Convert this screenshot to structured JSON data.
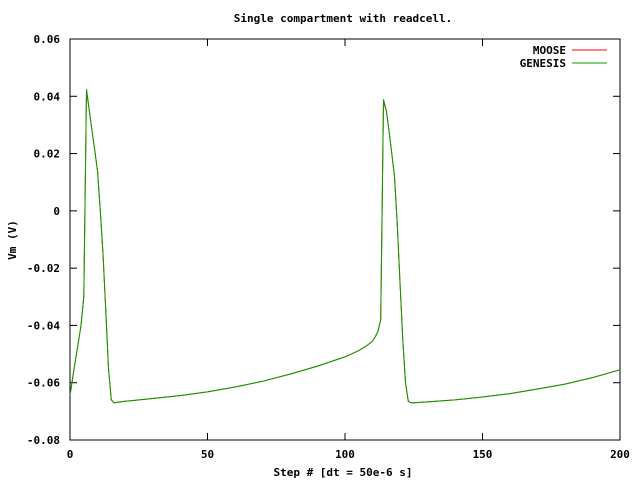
{
  "chart_data": {
    "type": "line",
    "title": "Single compartment with readcell.",
    "xlabel": "Step # [dt = 50e-6 s]",
    "ylabel": "Vm (V)",
    "xlim": [
      0,
      200
    ],
    "ylim": [
      -0.08,
      0.06
    ],
    "x_ticks": [
      0,
      50,
      100,
      150,
      200
    ],
    "x_tick_labels": [
      "0",
      "50",
      "100",
      "150",
      "200"
    ],
    "y_ticks": [
      -0.08,
      -0.06,
      -0.04,
      -0.02,
      0,
      0.02,
      0.04,
      0.06
    ],
    "y_tick_labels": [
      "-0.08",
      "-0.06",
      "-0.04",
      "-0.02",
      "0",
      "0.02",
      "0.04",
      "0.06"
    ],
    "legend_position": "top-right",
    "grid": false,
    "series": [
      {
        "name": "MOOSE",
        "color": "#ff0000",
        "x": [
          0,
          1,
          2,
          3,
          4,
          5,
          6,
          7,
          8,
          9,
          10,
          11,
          12,
          13,
          14,
          15,
          16,
          20,
          30,
          40,
          50,
          60,
          70,
          80,
          90,
          100,
          105,
          108,
          110,
          111,
          112,
          113,
          114,
          115,
          116,
          117,
          118,
          119,
          120,
          121,
          122,
          123,
          124,
          125,
          130,
          140,
          150,
          160,
          170,
          180,
          190,
          200
        ],
        "y": [
          -0.0645,
          -0.058,
          -0.052,
          -0.046,
          -0.04,
          -0.03,
          0.042,
          0.035,
          0.028,
          0.021,
          0.014,
          0.0,
          -0.015,
          -0.035,
          -0.055,
          -0.066,
          -0.067,
          -0.0665,
          -0.0655,
          -0.0645,
          -0.0632,
          -0.0615,
          -0.0595,
          -0.057,
          -0.0542,
          -0.051,
          -0.0488,
          -0.047,
          -0.0455,
          -0.044,
          -0.042,
          -0.038,
          0.038,
          0.035,
          0.028,
          0.02,
          0.012,
          -0.005,
          -0.025,
          -0.045,
          -0.06,
          -0.0665,
          -0.067,
          -0.067,
          -0.0667,
          -0.066,
          -0.065,
          -0.0638,
          -0.0622,
          -0.0605,
          -0.0582,
          -0.0555
        ]
      },
      {
        "name": "GENESIS",
        "color": "#00a000",
        "x": [
          0,
          1,
          2,
          3,
          4,
          5,
          6,
          7,
          8,
          9,
          10,
          11,
          12,
          13,
          14,
          15,
          16,
          20,
          30,
          40,
          50,
          60,
          70,
          80,
          90,
          100,
          105,
          108,
          110,
          111,
          112,
          113,
          114,
          115,
          116,
          117,
          118,
          119,
          120,
          121,
          122,
          123,
          124,
          125,
          130,
          140,
          150,
          160,
          170,
          180,
          190,
          200
        ],
        "y": [
          -0.0645,
          -0.058,
          -0.052,
          -0.046,
          -0.04,
          -0.03,
          0.0425,
          0.035,
          0.028,
          0.021,
          0.014,
          0.0,
          -0.015,
          -0.035,
          -0.055,
          -0.066,
          -0.067,
          -0.0665,
          -0.0655,
          -0.0645,
          -0.0632,
          -0.0615,
          -0.0595,
          -0.057,
          -0.0542,
          -0.051,
          -0.0488,
          -0.047,
          -0.0455,
          -0.044,
          -0.042,
          -0.038,
          0.039,
          0.035,
          0.028,
          0.02,
          0.012,
          -0.005,
          -0.025,
          -0.045,
          -0.06,
          -0.0665,
          -0.067,
          -0.067,
          -0.0667,
          -0.066,
          -0.065,
          -0.0638,
          -0.0622,
          -0.0605,
          -0.0582,
          -0.0555
        ]
      }
    ]
  }
}
